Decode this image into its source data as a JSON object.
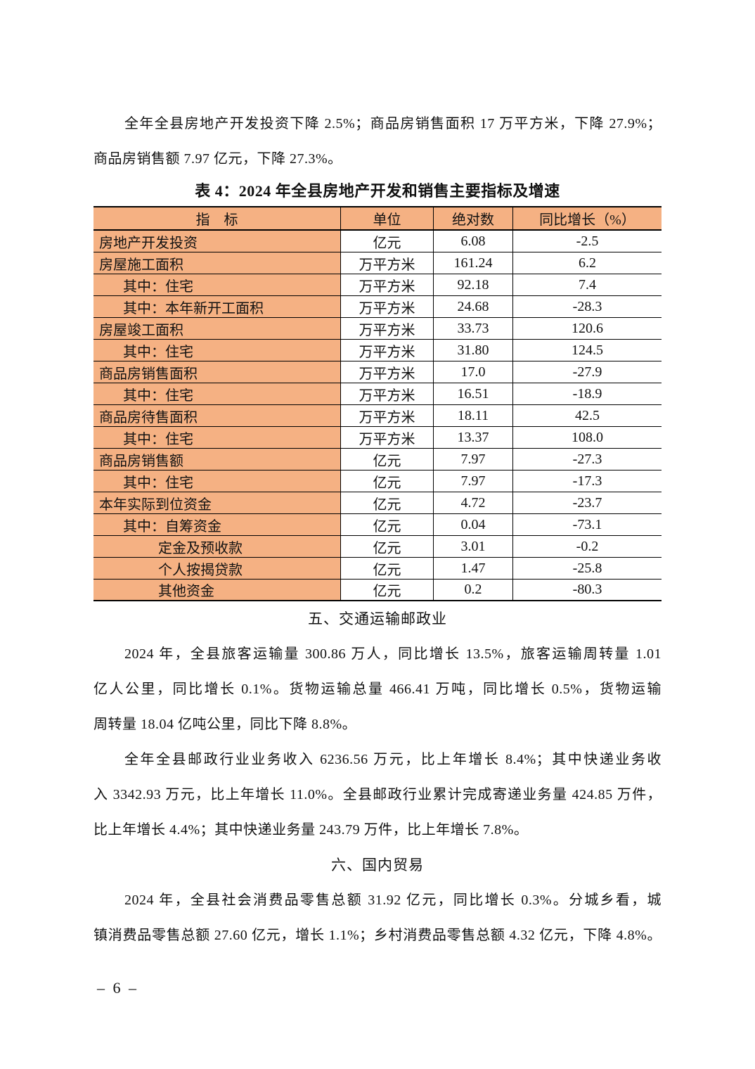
{
  "page": {
    "number_label": "– 6 –"
  },
  "intro_paragraph": {
    "lines": [
      "全年全县房地产开发投资下降 2.5%；商品房销售面积 17 万平方米，下降 27.9%；",
      "商品房销售额 7.97 亿元，下降 27.3%。"
    ]
  },
  "table": {
    "title": "表 4：2024 年全县房地产开发和销售主要指标及增速",
    "accent_color": "#F5B183",
    "headers": [
      "指　标",
      "单位",
      "绝对数",
      "同比增长（%）"
    ],
    "rows": [
      {
        "indicator": "房地产开发投资",
        "indent": 0,
        "unit": "亿元",
        "value": "6.08",
        "growth": "-2.5"
      },
      {
        "indicator": "房屋施工面积",
        "indent": 0,
        "unit": "万平方米",
        "value": "161.24",
        "growth": "6.2"
      },
      {
        "indicator": "其中：住宅",
        "indent": 1,
        "unit": "万平方米",
        "value": "92.18",
        "growth": "7.4"
      },
      {
        "indicator": "其中：本年新开工面积",
        "indent": 1,
        "unit": "万平方米",
        "value": "24.68",
        "growth": "-28.3"
      },
      {
        "indicator": "房屋竣工面积",
        "indent": 0,
        "unit": "万平方米",
        "value": "33.73",
        "growth": "120.6"
      },
      {
        "indicator": "其中：住宅",
        "indent": 1,
        "unit": "万平方米",
        "value": "31.80",
        "growth": "124.5"
      },
      {
        "indicator": "商品房销售面积",
        "indent": 0,
        "unit": "万平方米",
        "value": "17.0",
        "growth": "-27.9"
      },
      {
        "indicator": "其中：住宅",
        "indent": 1,
        "unit": "万平方米",
        "value": "16.51",
        "growth": "-18.9"
      },
      {
        "indicator": "商品房待售面积",
        "indent": 0,
        "unit": "万平方米",
        "value": "18.11",
        "growth": "42.5"
      },
      {
        "indicator": "其中：住宅",
        "indent": 1,
        "unit": "万平方米",
        "value": "13.37",
        "growth": "108.0"
      },
      {
        "indicator": "商品房销售额",
        "indent": 0,
        "unit": "亿元",
        "value": "7.97",
        "growth": "-27.3"
      },
      {
        "indicator": "其中：住宅",
        "indent": 1,
        "unit": "亿元",
        "value": "7.97",
        "growth": "-17.3"
      },
      {
        "indicator": "本年实际到位资金",
        "indent": 0,
        "unit": "亿元",
        "value": "4.72",
        "growth": "-23.7"
      },
      {
        "indicator": "其中：自筹资金",
        "indent": 1,
        "unit": "亿元",
        "value": "0.04",
        "growth": "-73.1"
      },
      {
        "indicator": "定金及预收款",
        "indent": 2,
        "unit": "亿元",
        "value": "3.01",
        "growth": "-0.2"
      },
      {
        "indicator": "个人按揭贷款",
        "indent": 2,
        "unit": "亿元",
        "value": "1.47",
        "growth": "-25.8"
      },
      {
        "indicator": "其他资金",
        "indent": 2,
        "unit": "亿元",
        "value": "0.2",
        "growth": "-80.3"
      }
    ]
  },
  "section5": {
    "heading": "五、交通运输邮政业",
    "paragraph1": {
      "lines": [
        "2024 年，全县旅客运输量 300.86 万人，同比增长 13.5%，旅客运输周转量 1.01",
        "亿人公里，同比增长 0.1%。货物运输总量 466.41 万吨，同比增长 0.5%，货物运输",
        "周转量 18.04 亿吨公里，同比下降 8.8%。"
      ]
    },
    "paragraph2": {
      "lines": [
        "全年全县邮政行业业务收入 6236.56 万元，比上年增长 8.4%；其中快递业务收",
        "入 3342.93 万元，比上年增长 11.0%。全县邮政行业累计完成寄递业务量 424.85 万件，",
        "比上年增长 4.4%；其中快递业务量 243.79 万件，比上年增长 7.8%。"
      ]
    }
  },
  "section6": {
    "heading": "六、国内贸易",
    "paragraph1": {
      "lines": [
        "2024 年，全县社会消费品零售总额 31.92 亿元，同比增长 0.3%。分城乡看，城",
        "镇消费品零售总额 27.60 亿元，增长 1.1%；乡村消费品零售总额 4.32 亿元，下降 4.8%。"
      ]
    }
  }
}
